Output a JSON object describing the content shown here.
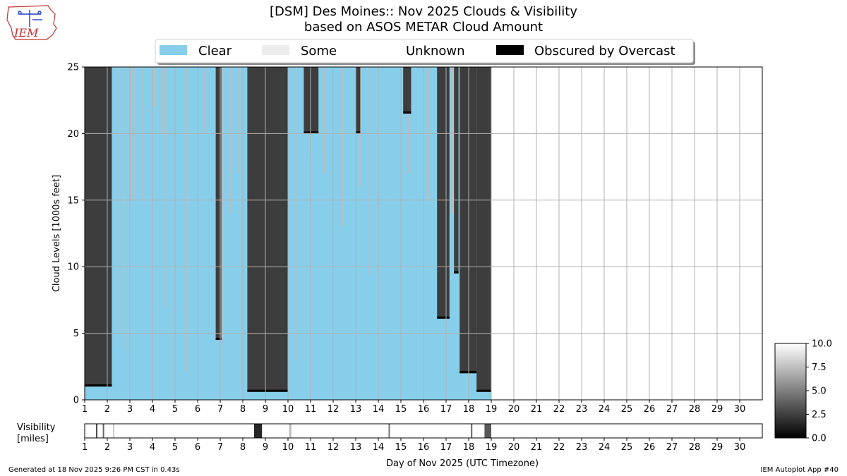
{
  "title": {
    "line1": "[DSM] Des Moines:: Nov 2025 Clouds & Visibility",
    "line2": "based on ASOS METAR Cloud Amount"
  },
  "logo_text": "IEM",
  "footer": {
    "left": "Generated at 18 Nov 2025 9:26 PM CST in 0.43s",
    "right": "IEM Autoplot App #40"
  },
  "colors": {
    "clear": "#87ceeb",
    "some": "#ececec",
    "unknown": "#ffffff",
    "overcast": "#000000",
    "dark_cloud": "#3d3d3d",
    "scattered": "#bdbdbd",
    "grid": "#b0b0b0"
  },
  "chart_data": [
    {
      "type": "heatmap",
      "name": "cloud-levels",
      "ylabel": "Cloud Levels [1000s feet]",
      "xlabel": "Day of Nov 2025 (UTC Timezone)",
      "xlim": [
        1,
        31
      ],
      "ylim": [
        0,
        25
      ],
      "xticks": [
        "1",
        "2",
        "3",
        "4",
        "5",
        "6",
        "7",
        "8",
        "9",
        "10",
        "11",
        "12",
        "13",
        "14",
        "15",
        "16",
        "17",
        "18",
        "19",
        "20",
        "21",
        "22",
        "23",
        "24",
        "25",
        "26",
        "27",
        "28",
        "29",
        "30"
      ],
      "yticks": [
        "0",
        "5",
        "10",
        "15",
        "20",
        "25"
      ],
      "grid": true,
      "data_end_day": 19,
      "legend": {
        "placement": "top-center",
        "entries": [
          {
            "label": "Clear",
            "color": "#87ceeb"
          },
          {
            "label": "Some",
            "color": "#ececec"
          },
          {
            "label": "Unknown",
            "color": "#ffffff"
          },
          {
            "label": "Obscured by Overcast",
            "color": "#000000"
          }
        ]
      },
      "overcast_periods": [
        {
          "start": 1.0,
          "end": 2.2,
          "base": 1.0
        },
        {
          "start": 6.8,
          "end": 7.05,
          "base": 4.5
        },
        {
          "start": 8.2,
          "end": 10.0,
          "base": 0.6
        },
        {
          "start": 10.7,
          "end": 11.35,
          "base": 20.0
        },
        {
          "start": 13.0,
          "end": 13.2,
          "base": 20.0
        },
        {
          "start": 15.1,
          "end": 15.45,
          "base": 21.5
        },
        {
          "start": 16.6,
          "end": 17.15,
          "base": 6.1
        },
        {
          "start": 17.35,
          "end": 17.55,
          "base": 9.5
        },
        {
          "start": 17.6,
          "end": 18.35,
          "base": 2.0
        },
        {
          "start": 18.35,
          "end": 19.0,
          "base": 0.6
        }
      ],
      "scattered_layers": [
        {
          "day": 2.5,
          "base": 5.0
        },
        {
          "day": 2.7,
          "base": 3.8
        },
        {
          "day": 3.0,
          "base": 15.0
        },
        {
          "day": 3.2,
          "base": 15.0
        },
        {
          "day": 3.5,
          "base": 15.0
        },
        {
          "day": 4.05,
          "base": 22.0
        },
        {
          "day": 4.4,
          "base": 20.0
        },
        {
          "day": 4.55,
          "base": 7.0
        },
        {
          "day": 5.5,
          "base": 2.1
        },
        {
          "day": 6.25,
          "base": 20.0
        },
        {
          "day": 7.1,
          "base": 4.4
        },
        {
          "day": 7.4,
          "base": 14.0
        },
        {
          "day": 7.75,
          "base": 17.0
        },
        {
          "day": 10.3,
          "base": 3.0
        },
        {
          "day": 11.0,
          "base": 18.5
        },
        {
          "day": 11.6,
          "base": 17.0
        },
        {
          "day": 12.4,
          "base": 13.0
        },
        {
          "day": 13.2,
          "base": 16.0
        },
        {
          "day": 13.5,
          "base": 9.3
        },
        {
          "day": 15.3,
          "base": 17.0
        },
        {
          "day": 16.2,
          "base": 15.0
        },
        {
          "day": 16.75,
          "base": 10.5
        },
        {
          "day": 17.25,
          "base": 14.0
        }
      ]
    },
    {
      "type": "heatmap",
      "name": "visibility",
      "ylabel": "Visibility [miles]",
      "ylabel_lines": [
        "Visibility",
        "[miles]"
      ],
      "xlim": [
        1,
        31
      ],
      "xticks": [
        "1",
        "2",
        "3",
        "4",
        "5",
        "6",
        "7",
        "8",
        "9",
        "10",
        "11",
        "12",
        "13",
        "14",
        "15",
        "16",
        "17",
        "18",
        "19",
        "20",
        "21",
        "22",
        "23",
        "24",
        "25",
        "26",
        "27",
        "28",
        "29",
        "30"
      ],
      "colorbar": {
        "min": 0.0,
        "max": 10.0,
        "ticks": [
          "0.0",
          "2.5",
          "5.0",
          "7.5",
          "10.0"
        ]
      },
      "events": [
        {
          "start": 1.5,
          "end": 1.55,
          "vis": 3.0
        },
        {
          "start": 1.8,
          "end": 1.85,
          "vis": 4.0
        },
        {
          "start": 2.25,
          "end": 2.3,
          "vis": 8.0
        },
        {
          "start": 8.5,
          "end": 8.85,
          "vis": 1.5
        },
        {
          "start": 10.05,
          "end": 10.15,
          "vis": 7.5
        },
        {
          "start": 14.45,
          "end": 14.52,
          "vis": 5.0
        },
        {
          "start": 18.1,
          "end": 18.15,
          "vis": 4.0
        },
        {
          "start": 18.7,
          "end": 19.0,
          "vis": 3.5
        }
      ]
    }
  ]
}
